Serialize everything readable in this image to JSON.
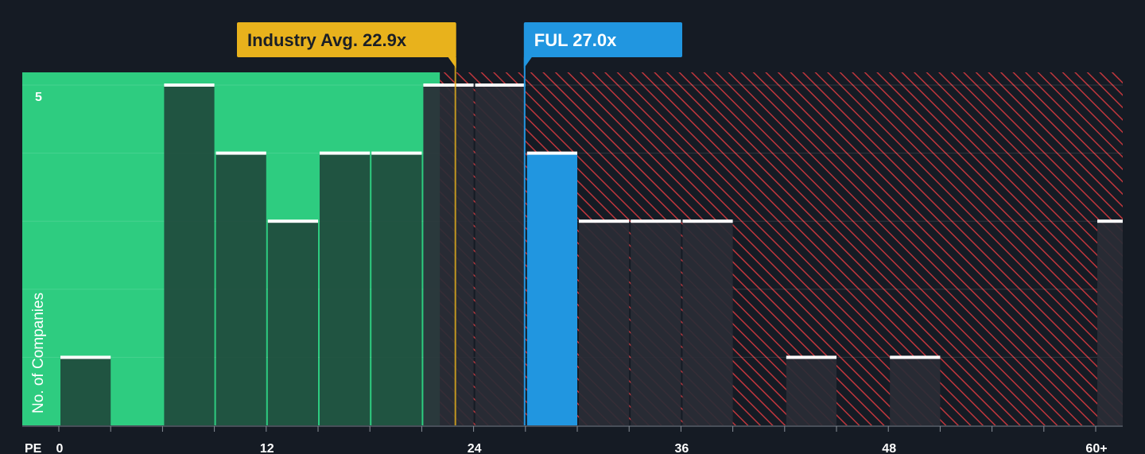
{
  "chart_data": {
    "type": "bar",
    "title": "",
    "xlabel": "PE",
    "ylabel": "No. of Companies",
    "x_ticks": [
      "0",
      "12",
      "24",
      "36",
      "48",
      "60+"
    ],
    "y_ticks": [
      "5"
    ],
    "ylim": [
      0,
      5.2
    ],
    "bin_width": 3,
    "bins": [
      {
        "x_start": 0,
        "value": 1
      },
      {
        "x_start": 3,
        "value": 0
      },
      {
        "x_start": 6,
        "value": 5
      },
      {
        "x_start": 9,
        "value": 4
      },
      {
        "x_start": 12,
        "value": 3
      },
      {
        "x_start": 15,
        "value": 4
      },
      {
        "x_start": 18,
        "value": 4
      },
      {
        "x_start": 21,
        "value": 5
      },
      {
        "x_start": 24,
        "value": 5
      },
      {
        "x_start": 27,
        "value": 4,
        "highlight": true
      },
      {
        "x_start": 30,
        "value": 3
      },
      {
        "x_start": 33,
        "value": 3
      },
      {
        "x_start": 36,
        "value": 3
      },
      {
        "x_start": 39,
        "value": 0
      },
      {
        "x_start": 42,
        "value": 1
      },
      {
        "x_start": 45,
        "value": 0
      },
      {
        "x_start": 48,
        "value": 1
      },
      {
        "x_start": 51,
        "value": 0
      },
      {
        "x_start": 54,
        "value": 0
      },
      {
        "x_start": 57,
        "value": 0
      },
      {
        "x_start": 60,
        "value": 3
      }
    ],
    "industry_avg": {
      "label": "Industry Avg. 22.9x",
      "value": 22.9
    },
    "company": {
      "label": "FUL 27.0x",
      "value": 27.0
    },
    "fair_zone_end": 22.0,
    "colors": {
      "background": "#151b24",
      "fair_zone": "#2ecc80",
      "bar_in_fair_zone": "#1f4a3c",
      "bar_in_over_zone": "#2a2d36",
      "highlight_bar": "#2196e0",
      "hatch": "#c0363c",
      "industry_callout": "#e8b21c",
      "company_callout": "#2196e0",
      "cap": "#ffffff",
      "gridline": "#ffffff"
    }
  }
}
